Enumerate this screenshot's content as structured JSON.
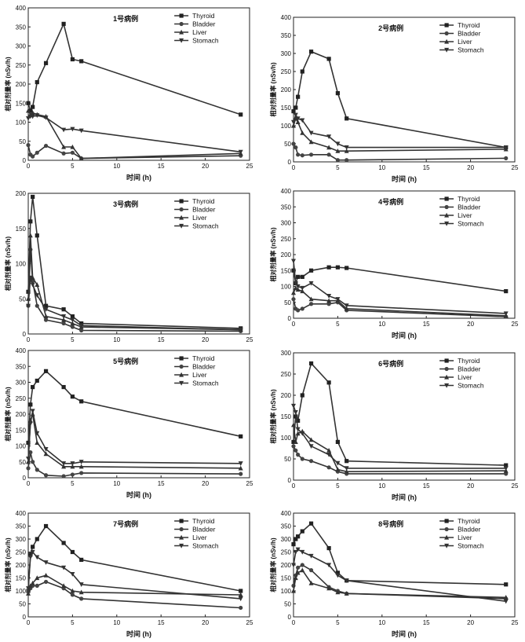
{
  "chart_data": [
    {
      "type": "line",
      "title": "1号病例",
      "xlabel": "时间 (h)",
      "ylabel": "相对剂量率 (nSv/h)",
      "xlim": [
        0,
        25
      ],
      "ylim": [
        0,
        400
      ],
      "xticks": [
        0,
        5,
        10,
        15,
        20,
        25
      ],
      "yticks": [
        0,
        50,
        100,
        150,
        200,
        250,
        300,
        350,
        400
      ],
      "legend": "top-right",
      "series": [
        {
          "name": "Thyroid",
          "marker": "square",
          "x": [
            0,
            0.25,
            0.5,
            1,
            2,
            4,
            5,
            6,
            24
          ],
          "y": [
            150,
            130,
            140,
            205,
            255,
            358,
            265,
            260,
            120
          ]
        },
        {
          "name": "Bladder",
          "marker": "circle",
          "x": [
            0,
            0.25,
            0.5,
            1,
            2,
            4,
            5,
            6,
            24
          ],
          "y": [
            40,
            15,
            10,
            20,
            38,
            18,
            20,
            5,
            12
          ]
        },
        {
          "name": "Liver",
          "marker": "triangle-up",
          "x": [
            0,
            0.25,
            0.5,
            1,
            2,
            4,
            5,
            6,
            24
          ],
          "y": [
            130,
            120,
            125,
            120,
            115,
            35,
            35,
            5,
            18
          ]
        },
        {
          "name": "Stomach",
          "marker": "triangle-down",
          "x": [
            0,
            0.25,
            0.5,
            1,
            2,
            4,
            5,
            6,
            24
          ],
          "y": [
            110,
            115,
            115,
            118,
            112,
            80,
            82,
            78,
            22
          ]
        }
      ]
    },
    {
      "type": "line",
      "title": "2号病例",
      "xlabel": "时间 (h)",
      "ylabel": "相对剂量率 (nSv/h)",
      "xlim": [
        0,
        25
      ],
      "ylim": [
        0,
        400
      ],
      "xticks": [
        0,
        5,
        10,
        15,
        20,
        25
      ],
      "yticks": [
        0,
        50,
        100,
        150,
        200,
        250,
        300,
        350,
        400
      ],
      "legend": "top-right",
      "series": [
        {
          "name": "Thyroid",
          "marker": "square",
          "x": [
            0,
            0.25,
            0.5,
            1,
            2,
            4,
            5,
            6,
            24
          ],
          "y": [
            140,
            150,
            180,
            250,
            305,
            285,
            190,
            120,
            40
          ]
        },
        {
          "name": "Bladder",
          "marker": "circle",
          "x": [
            0,
            0.25,
            0.5,
            1,
            2,
            4,
            5,
            6,
            24
          ],
          "y": [
            50,
            40,
            20,
            18,
            20,
            20,
            5,
            5,
            10
          ]
        },
        {
          "name": "Liver",
          "marker": "triangle-up",
          "x": [
            0,
            0.25,
            0.5,
            1,
            2,
            4,
            5,
            6,
            24
          ],
          "y": [
            100,
            120,
            110,
            80,
            55,
            40,
            30,
            30,
            35
          ]
        },
        {
          "name": "Stomach",
          "marker": "triangle-down",
          "x": [
            0,
            0.25,
            0.5,
            1,
            2,
            4,
            5,
            6,
            24
          ],
          "y": [
            110,
            130,
            120,
            115,
            80,
            70,
            50,
            40,
            40
          ]
        }
      ]
    },
    {
      "type": "line",
      "title": "3号病例",
      "xlabel": "",
      "ylabel": "相对剂量率 (nSv/h)",
      "xlim": [
        0,
        25
      ],
      "ylim": [
        0,
        200
      ],
      "xticks": [
        0,
        5,
        10,
        15,
        20,
        25
      ],
      "yticks": [
        0,
        50,
        100,
        150,
        200
      ],
      "legend": "top-right",
      "series": [
        {
          "name": "Thyroid",
          "marker": "square",
          "x": [
            0,
            0.25,
            0.5,
            1,
            2,
            4,
            5,
            6,
            24
          ],
          "y": [
            60,
            160,
            195,
            140,
            40,
            35,
            25,
            15,
            8
          ]
        },
        {
          "name": "Bladder",
          "marker": "circle",
          "x": [
            0,
            0.25,
            0.5,
            1,
            2,
            4,
            5,
            6,
            24
          ],
          "y": [
            40,
            120,
            75,
            40,
            20,
            15,
            10,
            5,
            4
          ]
        },
        {
          "name": "Liver",
          "marker": "triangle-up",
          "x": [
            0,
            0.25,
            0.5,
            1,
            2,
            4,
            5,
            6,
            24
          ],
          "y": [
            50,
            140,
            80,
            70,
            25,
            20,
            15,
            10,
            6
          ]
        },
        {
          "name": "Stomach",
          "marker": "triangle-down",
          "x": [
            0,
            0.25,
            0.5,
            1,
            2,
            4,
            5,
            6,
            24
          ],
          "y": [
            40,
            80,
            70,
            55,
            35,
            25,
            20,
            12,
            6
          ]
        }
      ]
    },
    {
      "type": "line",
      "title": "4号病例",
      "xlabel": "时间 (h)",
      "ylabel": "相对剂量率 (nSv/h)",
      "xlim": [
        0,
        25
      ],
      "ylim": [
        0,
        400
      ],
      "xticks": [
        0,
        5,
        10,
        15,
        20,
        25
      ],
      "yticks": [
        0,
        50,
        100,
        150,
        200,
        250,
        300,
        350,
        400
      ],
      "legend": "top-right",
      "series": [
        {
          "name": "Thyroid",
          "marker": "square",
          "x": [
            0,
            0.25,
            0.5,
            1,
            2,
            4,
            5,
            6,
            24
          ],
          "y": [
            150,
            110,
            130,
            130,
            150,
            160,
            160,
            158,
            85
          ]
        },
        {
          "name": "Bladder",
          "marker": "circle",
          "x": [
            0,
            0.25,
            0.5,
            1,
            2,
            4,
            5,
            6,
            24
          ],
          "y": [
            60,
            30,
            25,
            30,
            45,
            45,
            50,
            25,
            5
          ]
        },
        {
          "name": "Liver",
          "marker": "triangle-up",
          "x": [
            0,
            0.25,
            0.5,
            1,
            2,
            4,
            5,
            6,
            24
          ],
          "y": [
            80,
            95,
            90,
            85,
            60,
            55,
            55,
            30,
            8
          ]
        },
        {
          "name": "Stomach",
          "marker": "triangle-down",
          "x": [
            0,
            0.25,
            0.5,
            1,
            2,
            4,
            5,
            6,
            24
          ],
          "y": [
            180,
            110,
            100,
            95,
            110,
            70,
            60,
            40,
            15
          ]
        }
      ]
    },
    {
      "type": "line",
      "title": "5号病例",
      "xlabel": "时间 (h)",
      "ylabel": "相对剂量率 (nSv/h)",
      "xlim": [
        0,
        25
      ],
      "ylim": [
        0,
        400
      ],
      "xticks": [
        0,
        5,
        10,
        15,
        20,
        25
      ],
      "yticks": [
        0,
        50,
        100,
        150,
        200,
        250,
        300,
        350,
        400
      ],
      "legend": "top-right",
      "series": [
        {
          "name": "Thyroid",
          "marker": "square",
          "x": [
            0,
            0.25,
            0.5,
            1,
            2,
            4,
            5,
            6,
            24
          ],
          "y": [
            110,
            230,
            285,
            305,
            335,
            285,
            255,
            240,
            130
          ]
        },
        {
          "name": "Bladder",
          "marker": "circle",
          "x": [
            0,
            0.25,
            0.5,
            1,
            2,
            4,
            5,
            6,
            24
          ],
          "y": [
            30,
            80,
            50,
            25,
            8,
            5,
            10,
            15,
            12
          ]
        },
        {
          "name": "Liver",
          "marker": "triangle-up",
          "x": [
            0,
            0.25,
            0.5,
            1,
            2,
            4,
            5,
            6,
            24
          ],
          "y": [
            50,
            180,
            200,
            110,
            75,
            35,
            35,
            35,
            30
          ]
        },
        {
          "name": "Stomach",
          "marker": "triangle-down",
          "x": [
            0,
            0.25,
            0.5,
            1,
            2,
            4,
            5,
            6,
            24
          ],
          "y": [
            60,
            170,
            210,
            140,
            90,
            45,
            45,
            50,
            45
          ]
        }
      ]
    },
    {
      "type": "line",
      "title": "6号病例",
      "xlabel": "时间 (h)",
      "ylabel": "相对剂量率 (nSv/h)",
      "xlim": [
        0,
        25
      ],
      "ylim": [
        0,
        300
      ],
      "xticks": [
        0,
        5,
        10,
        15,
        20,
        25
      ],
      "yticks": [
        0,
        50,
        100,
        150,
        200,
        250,
        300
      ],
      "legend": "top-right",
      "series": [
        {
          "name": "Thyroid",
          "marker": "square",
          "x": [
            0,
            0.25,
            0.5,
            1,
            2,
            4,
            5,
            6,
            24
          ],
          "y": [
            90,
            150,
            140,
            200,
            275,
            230,
            90,
            45,
            35
          ]
        },
        {
          "name": "Bladder",
          "marker": "circle",
          "x": [
            0,
            0.25,
            0.5,
            1,
            2,
            4,
            5,
            6,
            24
          ],
          "y": [
            80,
            70,
            60,
            50,
            45,
            30,
            20,
            15,
            15
          ]
        },
        {
          "name": "Liver",
          "marker": "triangle-up",
          "x": [
            0,
            0.25,
            0.5,
            1,
            2,
            4,
            5,
            6,
            24
          ],
          "y": [
            130,
            90,
            110,
            115,
            95,
            70,
            25,
            20,
            22
          ]
        },
        {
          "name": "Stomach",
          "marker": "triangle-down",
          "x": [
            0,
            0.25,
            0.5,
            1,
            2,
            4,
            5,
            6,
            24
          ],
          "y": [
            175,
            160,
            120,
            110,
            80,
            60,
            40,
            28,
            28
          ]
        }
      ]
    },
    {
      "type": "line",
      "title": "7号病例",
      "xlabel": "时间 (h)",
      "ylabel": "相对剂量率 (nSv/h)",
      "xlim": [
        0,
        25
      ],
      "ylim": [
        0,
        400
      ],
      "xticks": [
        0,
        5,
        10,
        15,
        20,
        25
      ],
      "yticks": [
        0,
        50,
        100,
        150,
        200,
        250,
        300,
        350,
        400
      ],
      "legend": "top-right",
      "series": [
        {
          "name": "Thyroid",
          "marker": "square",
          "x": [
            0,
            0.25,
            0.5,
            1,
            2,
            4,
            5,
            6,
            24
          ],
          "y": [
            100,
            240,
            270,
            300,
            350,
            285,
            250,
            220,
            100
          ]
        },
        {
          "name": "Bladder",
          "marker": "circle",
          "x": [
            0,
            0.25,
            0.5,
            1,
            2,
            4,
            5,
            6,
            24
          ],
          "y": [
            100,
            110,
            120,
            120,
            135,
            110,
            85,
            70,
            35
          ]
        },
        {
          "name": "Liver",
          "marker": "triangle-up",
          "x": [
            0,
            0.25,
            0.5,
            1,
            2,
            4,
            5,
            6,
            24
          ],
          "y": [
            90,
            120,
            130,
            150,
            160,
            120,
            100,
            95,
            85
          ]
        },
        {
          "name": "Stomach",
          "marker": "triangle-down",
          "x": [
            0,
            0.25,
            0.5,
            1,
            2,
            4,
            5,
            6,
            24
          ],
          "y": [
            110,
            230,
            250,
            230,
            210,
            190,
            165,
            125,
            70
          ]
        }
      ]
    },
    {
      "type": "line",
      "title": "8号病例",
      "xlabel": "时间 (h)",
      "ylabel": "相对剂量率 (nSv/h)",
      "xlim": [
        0,
        25
      ],
      "ylim": [
        0,
        400
      ],
      "xticks": [
        0,
        5,
        10,
        15,
        20,
        25
      ],
      "yticks": [
        0,
        50,
        100,
        150,
        200,
        250,
        300,
        350,
        400
      ],
      "legend": "top-right",
      "series": [
        {
          "name": "Thyroid",
          "marker": "square",
          "x": [
            0,
            0.25,
            0.5,
            1,
            2,
            4,
            5,
            6,
            24
          ],
          "y": [
            280,
            300,
            310,
            330,
            360,
            265,
            170,
            140,
            125
          ]
        },
        {
          "name": "Bladder",
          "marker": "circle",
          "x": [
            0,
            0.25,
            0.5,
            1,
            2,
            4,
            5,
            6,
            24
          ],
          "y": [
            120,
            160,
            190,
            200,
            180,
            115,
            100,
            90,
            70
          ]
        },
        {
          "name": "Liver",
          "marker": "triangle-up",
          "x": [
            0,
            0.25,
            0.5,
            1,
            2,
            4,
            5,
            6,
            24
          ],
          "y": [
            100,
            150,
            170,
            180,
            130,
            110,
            95,
            90,
            75
          ]
        },
        {
          "name": "Stomach",
          "marker": "triangle-down",
          "x": [
            0,
            0.25,
            0.5,
            1,
            2,
            4,
            5,
            6,
            24
          ],
          "y": [
            200,
            250,
            260,
            250,
            235,
            200,
            160,
            140,
            60
          ]
        }
      ]
    }
  ]
}
